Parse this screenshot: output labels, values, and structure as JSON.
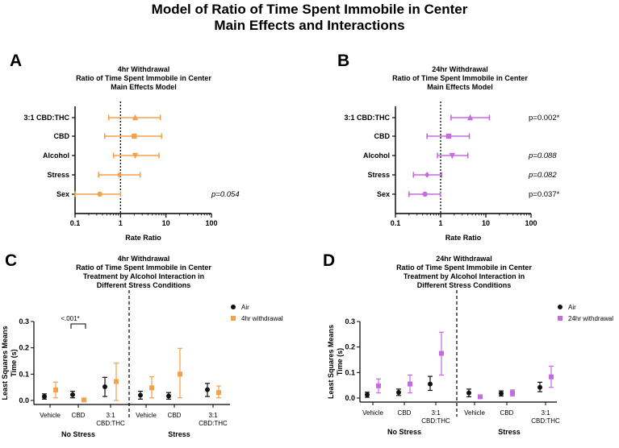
{
  "main_title": {
    "line1": "Model of Ratio of Time Spent Immobile in Center",
    "line2": "Main Effects and Interactions"
  },
  "colors": {
    "orange": "#F5A04B",
    "purple": "#C56ADF",
    "black": "#111111"
  },
  "panels": {
    "A": {
      "letter": "A"
    },
    "B": {
      "letter": "B"
    },
    "C": {
      "letter": "C"
    },
    "D": {
      "letter": "D"
    }
  },
  "chart_data": [
    {
      "id": "A",
      "type": "scatter",
      "title_lines": [
        "4hr Withdrawal",
        "Ratio of Time Spent Immobile in Center",
        "Main Effects Model"
      ],
      "xlabel": "Rate Ratio",
      "xscale": "log",
      "xlim": [
        0.1,
        100
      ],
      "xticks": [
        "0.1",
        "1",
        "10",
        "100"
      ],
      "reference_line": 1,
      "color": "#F5A04B",
      "rows": [
        {
          "label": "3:1 CBD:THC",
          "estimate": 2.1,
          "lower": 0.55,
          "upper": 7.5,
          "marker": "triangle-up",
          "annotation": ""
        },
        {
          "label": "CBD",
          "estimate": 2.0,
          "lower": 0.45,
          "upper": 8.0,
          "marker": "square",
          "annotation": ""
        },
        {
          "label": "Alcohol",
          "estimate": 2.1,
          "lower": 0.7,
          "upper": 7.0,
          "marker": "triangle-down",
          "annotation": ""
        },
        {
          "label": "Stress",
          "estimate": 0.95,
          "lower": 0.33,
          "upper": 2.7,
          "marker": "diamond",
          "annotation": ""
        },
        {
          "label": "Sex",
          "estimate": 0.35,
          "lower": 0.1,
          "upper": 1.0,
          "marker": "circle",
          "annotation": "p=0.054"
        }
      ]
    },
    {
      "id": "B",
      "type": "scatter",
      "title_lines": [
        "24hr Withdrawal",
        "Ratio of Time Spent Immobile in Center",
        "Main Effects Model"
      ],
      "xlabel": "Rate Ratio",
      "xscale": "log",
      "xlim": [
        0.1,
        100
      ],
      "xticks": [
        "0.1",
        "1",
        "10",
        "100"
      ],
      "reference_line": 1,
      "color": "#C56ADF",
      "rows": [
        {
          "label": "3:1 CBD:THC",
          "estimate": 4.5,
          "lower": 1.7,
          "upper": 12.0,
          "marker": "triangle-up",
          "annotation": "p=0.002*"
        },
        {
          "label": "CBD",
          "estimate": 1.5,
          "lower": 0.5,
          "upper": 4.3,
          "marker": "square",
          "annotation": ""
        },
        {
          "label": "Alcohol",
          "estimate": 1.8,
          "lower": 0.85,
          "upper": 4.0,
          "marker": "triangle-down",
          "annotation": "p=0.088"
        },
        {
          "label": "Stress",
          "estimate": 0.5,
          "lower": 0.25,
          "upper": 1.05,
          "marker": "diamond",
          "annotation": "p=0.082"
        },
        {
          "label": "Sex",
          "estimate": 0.45,
          "lower": 0.2,
          "upper": 0.98,
          "marker": "circle",
          "annotation": "p=0.037*"
        }
      ]
    },
    {
      "id": "C",
      "type": "scatter",
      "title_lines": [
        "4hr Withdrawal",
        "Ratio of Time Spent Immobile in Center",
        "Treatment by Alcohol Interaction in",
        "Different Stress Conditions"
      ],
      "ylabel_lines": [
        "Least Squares Means",
        "Time (s)"
      ],
      "ylim": [
        0,
        0.3
      ],
      "yticks": [
        "0.0",
        "0.1",
        "0.2",
        "0.3"
      ],
      "categories": [
        "Vehicle",
        "CBD",
        "3:1 CBD:THC",
        "Vehicle",
        "CBD",
        "3:1 CBD:THC"
      ],
      "groups": [
        "No Stress",
        "Stress"
      ],
      "legend_position": "top-right",
      "series": [
        {
          "name": "Air",
          "color": "#111111",
          "marker": "circle",
          "values": [
            0.015,
            0.022,
            0.052,
            0.02,
            0.017,
            0.041
          ],
          "lower": [
            0.005,
            0.01,
            0.015,
            0.005,
            0.005,
            0.015
          ],
          "upper": [
            0.025,
            0.035,
            0.088,
            0.035,
            0.03,
            0.065
          ]
        },
        {
          "name": "4hr withdrawal",
          "color": "#F5A04B",
          "marker": "square",
          "values": [
            0.04,
            0.002,
            0.072,
            0.048,
            0.1,
            0.03
          ],
          "lower": [
            0.01,
            0.0,
            0.0,
            0.01,
            0.01,
            0.01
          ],
          "upper": [
            0.07,
            0.005,
            0.142,
            0.09,
            0.198,
            0.055
          ]
        }
      ],
      "significance": {
        "text": "<.001*",
        "between": [
          0,
          1
        ],
        "category_index": 1
      }
    },
    {
      "id": "D",
      "type": "scatter",
      "title_lines": [
        "24hr Withdrawal",
        "Ratio of Time Spent Immobile in Center",
        "Treatment by Alcohol Interaction in",
        "Different Stress Conditions"
      ],
      "ylabel_lines": [
        "Least Squares Means",
        "Time (s)"
      ],
      "ylim": [
        0,
        0.3
      ],
      "yticks": [
        "0.0",
        "0.1",
        "0.2",
        "0.3"
      ],
      "categories": [
        "Vehicle",
        "CBD",
        "3:1 CBD:THC",
        "Vehicle",
        "CBD",
        "3:1 CBD:THC"
      ],
      "groups": [
        "No Stress",
        "Stress"
      ],
      "legend_position": "top-right",
      "series": [
        {
          "name": "Air",
          "color": "#111111",
          "marker": "circle",
          "values": [
            0.013,
            0.022,
            0.055,
            0.02,
            0.018,
            0.042
          ],
          "lower": [
            0.003,
            0.01,
            0.03,
            0.005,
            0.008,
            0.025
          ],
          "upper": [
            0.023,
            0.035,
            0.085,
            0.035,
            0.028,
            0.062
          ]
        },
        {
          "name": "24hr withdrawal",
          "color": "#C56ADF",
          "marker": "square",
          "values": [
            0.048,
            0.055,
            0.175,
            0.005,
            0.02,
            0.083
          ],
          "lower": [
            0.02,
            0.02,
            0.09,
            0.0,
            0.008,
            0.042
          ],
          "upper": [
            0.075,
            0.09,
            0.258,
            0.01,
            0.032,
            0.125
          ]
        }
      ]
    }
  ]
}
